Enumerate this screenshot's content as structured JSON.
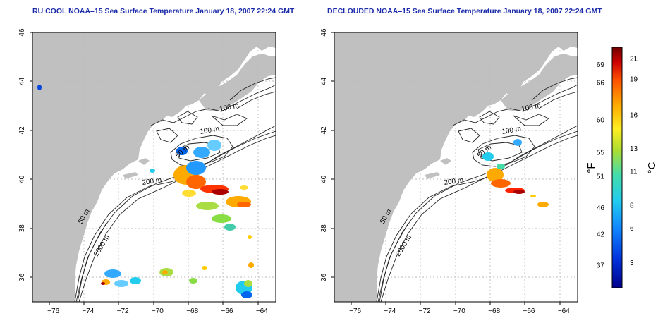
{
  "titles": {
    "left": "RU COOL NOAA–15 Sea Surface Temperature January 18, 2007 22:24 GMT",
    "right": "DECLOUDED NOAA–15 Sea Surface Temperature January 18, 2007 22:24 GMT"
  },
  "axes": {
    "lon_ticks": [
      "−76",
      "−74",
      "−72",
      "−70",
      "−68",
      "−66",
      "−64"
    ],
    "lat_ticks": [
      "36",
      "38",
      "40",
      "42",
      "44",
      "46"
    ],
    "lon_range": [
      -77.2,
      -63.2
    ],
    "lat_range": [
      35.0,
      46.0
    ]
  },
  "contour_labels": {
    "left": [
      "100 m",
      "100 m",
      "50 m",
      "200 m",
      "50 m",
      "2000 m"
    ],
    "right": [
      "100 m",
      "100 m",
      "50 m",
      "200 m",
      "50 m",
      "2000 m"
    ]
  },
  "colorbar": {
    "unit_f": "°F",
    "unit_c": "°C",
    "f_labels": [
      "69",
      "66",
      "60",
      "55",
      "51",
      "46",
      "42",
      "37"
    ],
    "c_labels": [
      "21",
      "19",
      "16",
      "13",
      "11",
      "8",
      "6",
      "3"
    ],
    "colors": [
      "#00008b",
      "#0033cc",
      "#0066ff",
      "#00ccff",
      "#33ddaa",
      "#88dd44",
      "#ffff33",
      "#ffcc00",
      "#ff8800",
      "#ff2200",
      "#aa0000",
      "#660000"
    ]
  },
  "colors": {
    "land": "#c0c0c0",
    "grid": "#bbbbbb",
    "contour": "#222222",
    "title": "#1a2aa8"
  }
}
